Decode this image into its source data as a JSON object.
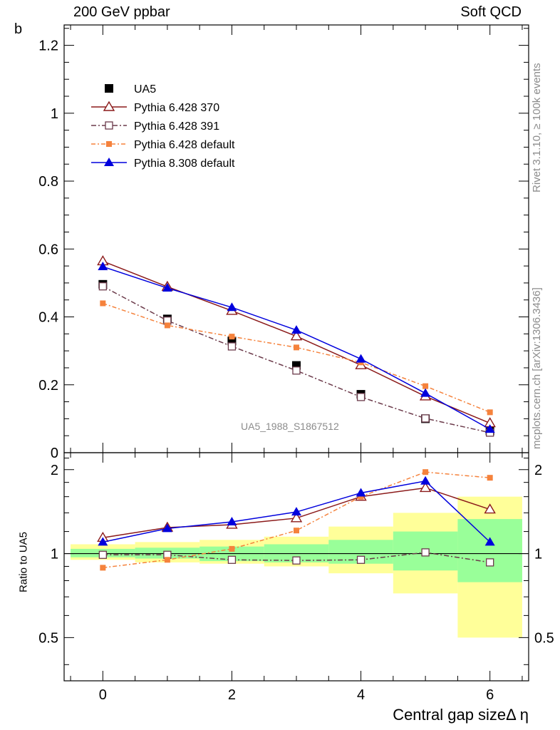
{
  "header": {
    "left_title": "200 GeV ppbar",
    "right_title": "Soft QCD"
  },
  "side_text": {
    "rivet": "Rivet 3.1.10, ≥ 100k events",
    "mcplots": "mcplots.cern.ch [arXiv:1306.3436]"
  },
  "analysis_id": "UA5_1988_S1867512",
  "chart_data": [
    {
      "type": "line",
      "ylabel": "b",
      "xlabel": "",
      "xlim": [
        -0.6,
        6.6
      ],
      "ylim": [
        0,
        1.26
      ],
      "x_ticks": [
        "0",
        "2",
        "4",
        "6"
      ],
      "y_ticks": [
        "0",
        "0.2",
        "0.4",
        "0.6",
        "0.8",
        "1",
        "1.2"
      ],
      "legend_position": "top-left",
      "x": [
        0,
        1,
        2,
        3,
        4,
        5,
        6
      ],
      "series": [
        {
          "name": "UA5",
          "marker": "filled-square",
          "color": "#000000",
          "values": [
            0.496,
            0.394,
            0.329,
            0.257,
            0.172,
            0.1,
            0.064
          ]
        },
        {
          "name": "Pythia 6.428 370",
          "marker": "open-triangle",
          "color": "#8b1a1a",
          "values": [
            0.564,
            0.489,
            0.418,
            0.343,
            0.258,
            0.166,
            0.087
          ]
        },
        {
          "name": "Pythia 6.428 391",
          "marker": "open-square",
          "color": "#6b3a4a",
          "values": [
            0.49,
            0.389,
            0.313,
            0.242,
            0.164,
            0.101,
            0.059
          ]
        },
        {
          "name": "Pythia 6.428 default",
          "marker": "small-filled-square",
          "color": "#f5823c",
          "values": [
            0.44,
            0.375,
            0.342,
            0.31,
            0.266,
            0.196,
            0.119
          ]
        },
        {
          "name": "Pythia 8.308 default",
          "marker": "filled-triangle",
          "color": "#0000dd",
          "values": [
            0.548,
            0.485,
            0.428,
            0.361,
            0.276,
            0.175,
            0.069
          ]
        }
      ]
    },
    {
      "type": "line",
      "ylabel": "Ratio to UA5",
      "xlabel": "Central gap sizeΔ η",
      "xlim": [
        -0.6,
        6.6
      ],
      "ylim": [
        0.35,
        2.3
      ],
      "x_ticks": [
        "0",
        "2",
        "4",
        "6"
      ],
      "y_ticks": [
        "0.5",
        "1",
        "2"
      ],
      "bands": {
        "x_edges": [
          -0.5,
          0.5,
          1.5,
          2.5,
          3.5,
          4.5,
          5.5,
          6.5
        ],
        "inner": [
          [
            0.97,
            1.04
          ],
          [
            0.96,
            1.05
          ],
          [
            0.94,
            1.06
          ],
          [
            0.93,
            1.08
          ],
          [
            0.92,
            1.12
          ],
          [
            0.87,
            1.2
          ],
          [
            0.79,
            1.33
          ]
        ],
        "outer": [
          [
            0.95,
            1.08
          ],
          [
            0.93,
            1.1
          ],
          [
            0.92,
            1.12
          ],
          [
            0.9,
            1.15
          ],
          [
            0.85,
            1.25
          ],
          [
            0.72,
            1.4
          ],
          [
            0.5,
            1.6
          ]
        ]
      },
      "x": [
        0,
        1,
        2,
        3,
        4,
        5,
        6
      ],
      "series": [
        {
          "name": "Pythia 6.428 370",
          "marker": "open-triangle",
          "color": "#8b1a1a",
          "values": [
            1.14,
            1.24,
            1.27,
            1.34,
            1.6,
            1.72,
            1.44
          ]
        },
        {
          "name": "Pythia 6.428 391",
          "marker": "open-square",
          "color": "#6b3a4a",
          "values": [
            0.99,
            0.99,
            0.95,
            0.945,
            0.95,
            1.01,
            0.93
          ]
        },
        {
          "name": "Pythia 6.428 default",
          "marker": "small-filled-square",
          "color": "#f5823c",
          "values": [
            0.89,
            0.95,
            1.04,
            1.21,
            1.6,
            1.96,
            1.87
          ]
        },
        {
          "name": "Pythia 8.308 default",
          "marker": "filled-triangle",
          "color": "#0000dd",
          "values": [
            1.1,
            1.23,
            1.3,
            1.41,
            1.65,
            1.82,
            1.1
          ]
        }
      ]
    }
  ]
}
